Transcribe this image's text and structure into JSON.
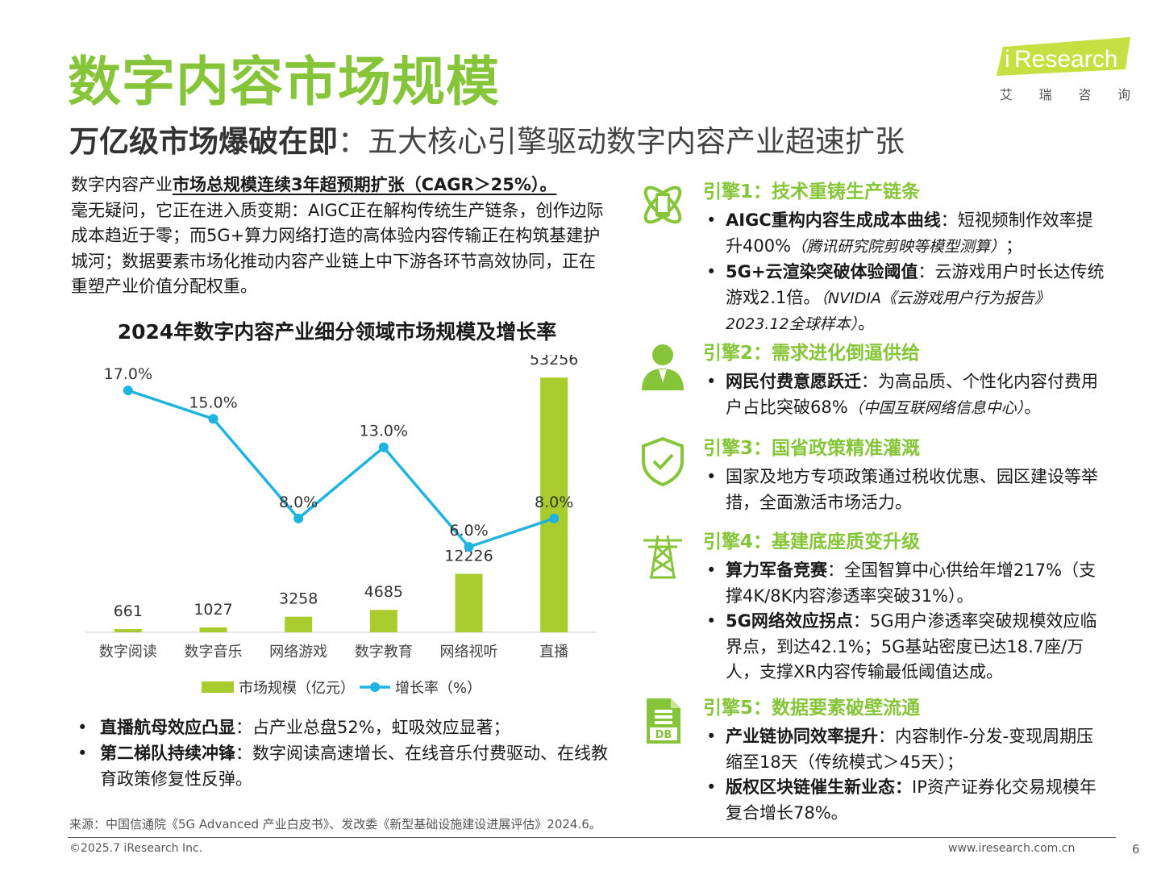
{
  "header": {
    "title": "数字内容市场规模",
    "subtitle_bold": "万亿级市场爆破在即",
    "subtitle_rest": "：五大核心引擎驱动数字内容产业超速扩张"
  },
  "logo": {
    "brand_i": "i",
    "brand_rest": "Research",
    "cn": [
      "艾",
      "瑞",
      "咨",
      "询"
    ],
    "accent_color": "#c6e043"
  },
  "intro": {
    "lead": "数字内容产业",
    "highlight": "市场总规模连续3年超预期扩张（CAGR＞25%）。",
    "body": "毫无疑问，它正在进入质变期：AIGC正在解构传统生产链条，创作边际成本趋近于零；而5G+算力网络打造的高体验内容传输正在构筑基建护城河；数据要素市场化推动内容产业链上中下游各环节高效协同，正在重塑产业价值分配权重。"
  },
  "chart_data": {
    "type": "bar",
    "title": "2024年数字内容产业细分领域市场规模及增长率",
    "categories": [
      "数字阅读",
      "数字音乐",
      "网络游戏",
      "数字教育",
      "网络视听",
      "直播"
    ],
    "series": [
      {
        "name": "市场规模（亿元）",
        "type": "bar",
        "color": "#a8cc2e",
        "values": [
          661,
          1027,
          3258,
          4685,
          12226,
          53256
        ],
        "labels": [
          "661",
          "1027",
          "3258",
          "4685",
          "12226",
          "53256"
        ]
      },
      {
        "name": "增长率（%）",
        "type": "line",
        "color": "#1fb4e0",
        "values": [
          17.0,
          15.0,
          8.0,
          13.0,
          6.0,
          8.0
        ],
        "labels": [
          "17.0%",
          "15.0%",
          "8.0%",
          "13.0%",
          "6.0%",
          "8.0%"
        ]
      }
    ],
    "bar_ylim": [
      0,
      58000
    ],
    "line_ylim": [
      0,
      19.5
    ],
    "legend_placement": "bottom-center",
    "grid": false
  },
  "bullets_left": [
    {
      "bold": "直播航母效应凸显",
      "text": "：占产业总盘52%，虹吸效应显著；"
    },
    {
      "bold": "第二梯队持续冲锋",
      "text": "：数字阅读高速增长、在线音乐付费驱动、在线教育政策修复性反弹。"
    }
  ],
  "bullet_char": "•",
  "engines": [
    {
      "icon": "phone-atom-icon",
      "title": "引擎1：技术重铸生产链条",
      "items": [
        {
          "bold": "AIGC重构内容生成成本曲线",
          "text": "：短视频制作效率提升400%",
          "note": "（腾讯研究院剪映等模型测算）",
          "tail": "；"
        },
        {
          "bold": "5G+云渲染突破体验阈值",
          "text": "：云游戏用户时长达传统游戏2.1倍。",
          "note": "（NVIDIA《云游戏用户行为报告》2023.12全球样本）",
          "tail": "。"
        }
      ]
    },
    {
      "icon": "user-icon",
      "title": "引擎2：需求进化倒逼供给",
      "items": [
        {
          "bold": "网民付费意愿跃迁",
          "text": "：为高品质、个性化内容付费用户占比突破68%",
          "note": "（中国互联网络信息中心）",
          "tail": "。"
        }
      ]
    },
    {
      "icon": "shield-check-icon",
      "title": "引擎3：国省政策精准灌溉",
      "items": [
        {
          "bold": "",
          "text": "国家及地方专项政策通过税收优惠、园区建设等举措，全面激活市场活力。",
          "note": "",
          "tail": ""
        }
      ]
    },
    {
      "icon": "tower-icon",
      "title": "引擎4：基建底座质变升级",
      "items": [
        {
          "bold": "算力军备竞赛",
          "text": "：全国智算中心供给年增217%（支撑4K/8K内容渗透率突破31%）。",
          "note": "",
          "tail": ""
        },
        {
          "bold": "5G网络效应拐点",
          "text": "：5G用户渗透率突破规模效应临界点，到达42.1%；5G基站密度已达18.7座/万人，支撑XR内容传输最低阈值达成。",
          "note": "",
          "tail": ""
        }
      ]
    },
    {
      "icon": "database-icon",
      "title": "引擎5：数据要素破壁流通",
      "items": [
        {
          "bold": "产业链协同效率提升",
          "text": "：内容制作-分发-变现周期压缩至18天（传统模式＞45天）；",
          "note": "",
          "tail": ""
        },
        {
          "bold": "版权区块链催生新业态：",
          "text": "IP资产证券化交易规模年复合增长78%。",
          "note": "",
          "tail": ""
        }
      ]
    }
  ],
  "footer": {
    "source": "来源：中国信通院《5G Advanced 产业白皮书》、发改委《新型基础设施建设进展评估》2024.6。",
    "copyright": "©2025.7 iResearch Inc.",
    "website": "www.iresearch.com.cn",
    "page": "6"
  },
  "colors": {
    "accent_green": "#86c53a",
    "bar_green": "#a8cc2e",
    "line_blue": "#1fb4e0"
  }
}
